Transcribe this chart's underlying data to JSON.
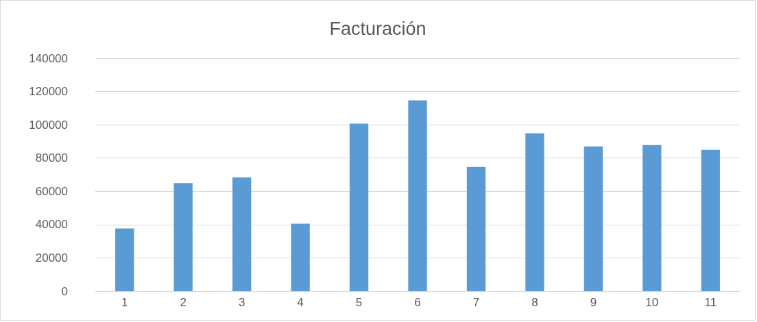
{
  "chart_data": {
    "type": "bar",
    "title": "Facturación",
    "categories": [
      "1",
      "2",
      "3",
      "4",
      "5",
      "6",
      "7",
      "8",
      "9",
      "10",
      "11"
    ],
    "values": [
      37700,
      65000,
      68400,
      40600,
      100700,
      114700,
      74600,
      94900,
      87000,
      87800,
      84900
    ],
    "color": "#5b9bd5",
    "ylim": [
      0,
      140000
    ],
    "yticks": [
      0,
      20000,
      40000,
      60000,
      80000,
      100000,
      120000,
      140000
    ],
    "grid": "y"
  }
}
